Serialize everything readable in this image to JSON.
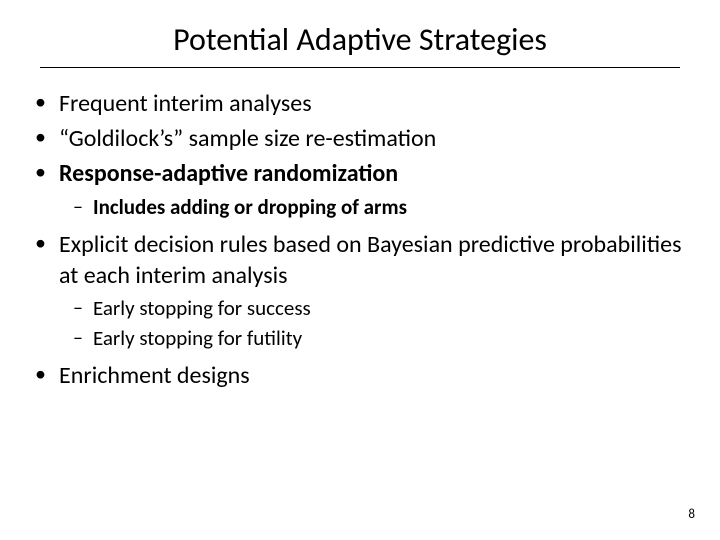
{
  "title": "Potential Adaptive Strategies",
  "bullets": {
    "b1": "Frequent interim analyses",
    "b2": "“Goldilock’s” sample size re-estimation",
    "b3": "Response-adaptive randomization",
    "b3_sub1": "Includes adding or dropping of arms",
    "b4": "Explicit decision rules based on Bayesian predictive probabilities at each interim analysis",
    "b4_sub1": "Early stopping for success",
    "b4_sub2": "Early stopping for futility",
    "b5": "Enrichment designs"
  },
  "page_number": "8",
  "colors": {
    "background": "#ffffff",
    "text": "#000000",
    "divider": "#000000"
  },
  "fonts": {
    "title_size": 32,
    "bullet_size": 24,
    "sub_bullet_size": 21,
    "page_num_size": 13
  }
}
